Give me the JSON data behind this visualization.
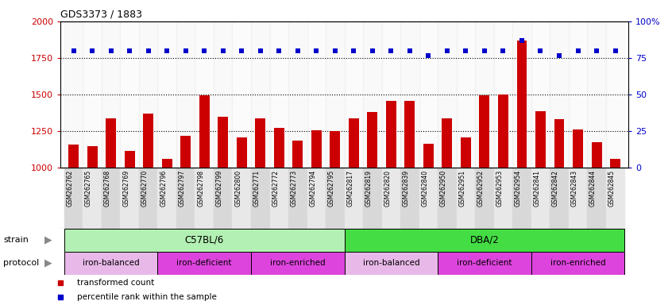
{
  "title": "GDS3373 / 1883",
  "samples": [
    "GSM262762",
    "GSM262765",
    "GSM262768",
    "GSM262769",
    "GSM262770",
    "GSM262796",
    "GSM262797",
    "GSM262798",
    "GSM262799",
    "GSM262800",
    "GSM262771",
    "GSM262772",
    "GSM262773",
    "GSM262794",
    "GSM262795",
    "GSM262817",
    "GSM262819",
    "GSM262820",
    "GSM262839",
    "GSM262840",
    "GSM262950",
    "GSM262951",
    "GSM262952",
    "GSM262953",
    "GSM262954",
    "GSM262841",
    "GSM262842",
    "GSM262843",
    "GSM262844",
    "GSM262845"
  ],
  "bar_values": [
    1160,
    1145,
    1340,
    1115,
    1370,
    1060,
    1220,
    1495,
    1350,
    1205,
    1340,
    1275,
    1185,
    1255,
    1250,
    1340,
    1380,
    1455,
    1455,
    1165,
    1340,
    1205,
    1495,
    1500,
    1870,
    1385,
    1330,
    1260,
    1175,
    1060
  ],
  "dot_values": [
    1800,
    1800,
    1800,
    1800,
    1800,
    1800,
    1800,
    1800,
    1800,
    1800,
    1800,
    1800,
    1800,
    1800,
    1800,
    1800,
    1800,
    1800,
    1800,
    1765,
    1800,
    1800,
    1800,
    1800,
    1870,
    1800,
    1765,
    1800,
    1800,
    1800
  ],
  "bar_color": "#cc0000",
  "dot_color": "#0000cc",
  "ylim": [
    1000,
    2000
  ],
  "y2lim": [
    0,
    100
  ],
  "yticks_left": [
    1000,
    1250,
    1500,
    1750,
    2000
  ],
  "yticks_right": [
    0,
    25,
    50,
    75,
    100
  ],
  "dotted_ylines": [
    1250,
    1500,
    1750
  ],
  "strain_segments": [
    {
      "text": "C57BL/6",
      "start": 0,
      "end": 14,
      "facecolor": "#b3f0b3"
    },
    {
      "text": "DBA/2",
      "start": 15,
      "end": 29,
      "facecolor": "#44dd44"
    }
  ],
  "protocol_segments": [
    {
      "text": "iron-balanced",
      "start": 0,
      "end": 4,
      "facecolor": "#e8b8e8"
    },
    {
      "text": "iron-deficient",
      "start": 5,
      "end": 9,
      "facecolor": "#dd44dd"
    },
    {
      "text": "iron-enriched",
      "start": 10,
      "end": 14,
      "facecolor": "#dd44dd"
    },
    {
      "text": "iron-balanced",
      "start": 15,
      "end": 19,
      "facecolor": "#e8b8e8"
    },
    {
      "text": "iron-deficient",
      "start": 20,
      "end": 24,
      "facecolor": "#dd44dd"
    },
    {
      "text": "iron-enriched",
      "start": 25,
      "end": 29,
      "facecolor": "#dd44dd"
    }
  ],
  "legend": [
    {
      "label": "transformed count",
      "color": "#cc0000"
    },
    {
      "label": "percentile rank within the sample",
      "color": "#0000cc"
    }
  ],
  "xtick_bg_colors": [
    "#d8d8d8",
    "#e8e8e8"
  ]
}
